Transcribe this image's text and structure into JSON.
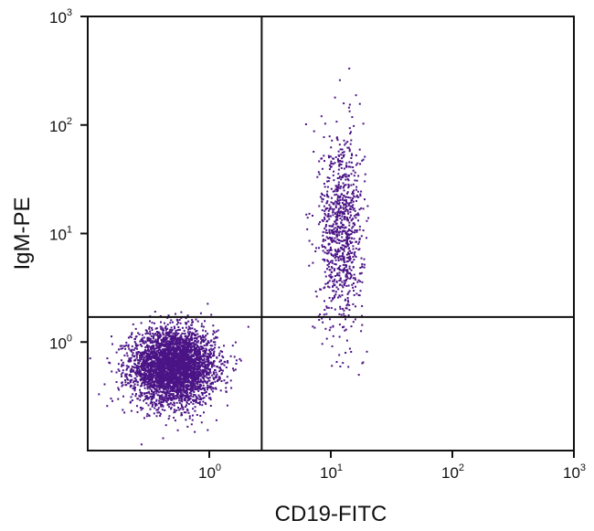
{
  "chart_data": {
    "type": "scatter",
    "xlabel": "CD19-FITC",
    "ylabel": "IgM-PE",
    "x_scale": "log",
    "y_scale": "log",
    "xlim": [
      0.1,
      1000
    ],
    "ylim": [
      0.1,
      1000
    ],
    "x_ticks": [
      {
        "base": "10",
        "exp": "0",
        "value": 1
      },
      {
        "base": "10",
        "exp": "1",
        "value": 10
      },
      {
        "base": "10",
        "exp": "2",
        "value": 100
      },
      {
        "base": "10",
        "exp": "3",
        "value": 1000
      }
    ],
    "y_ticks": [
      {
        "base": "10",
        "exp": "0",
        "value": 1
      },
      {
        "base": "10",
        "exp": "1",
        "value": 10
      },
      {
        "base": "10",
        "exp": "2",
        "value": 100
      },
      {
        "base": "10",
        "exp": "3",
        "value": 1000
      }
    ],
    "gate_x": 2.7,
    "gate_y": 1.7,
    "grid": false,
    "point_color": "#4b1486",
    "clusters": [
      {
        "center_x": 0.5,
        "center_y": 0.6,
        "count": 4000
      },
      {
        "center_x": 12,
        "center_y": 11,
        "count": 900
      }
    ]
  }
}
